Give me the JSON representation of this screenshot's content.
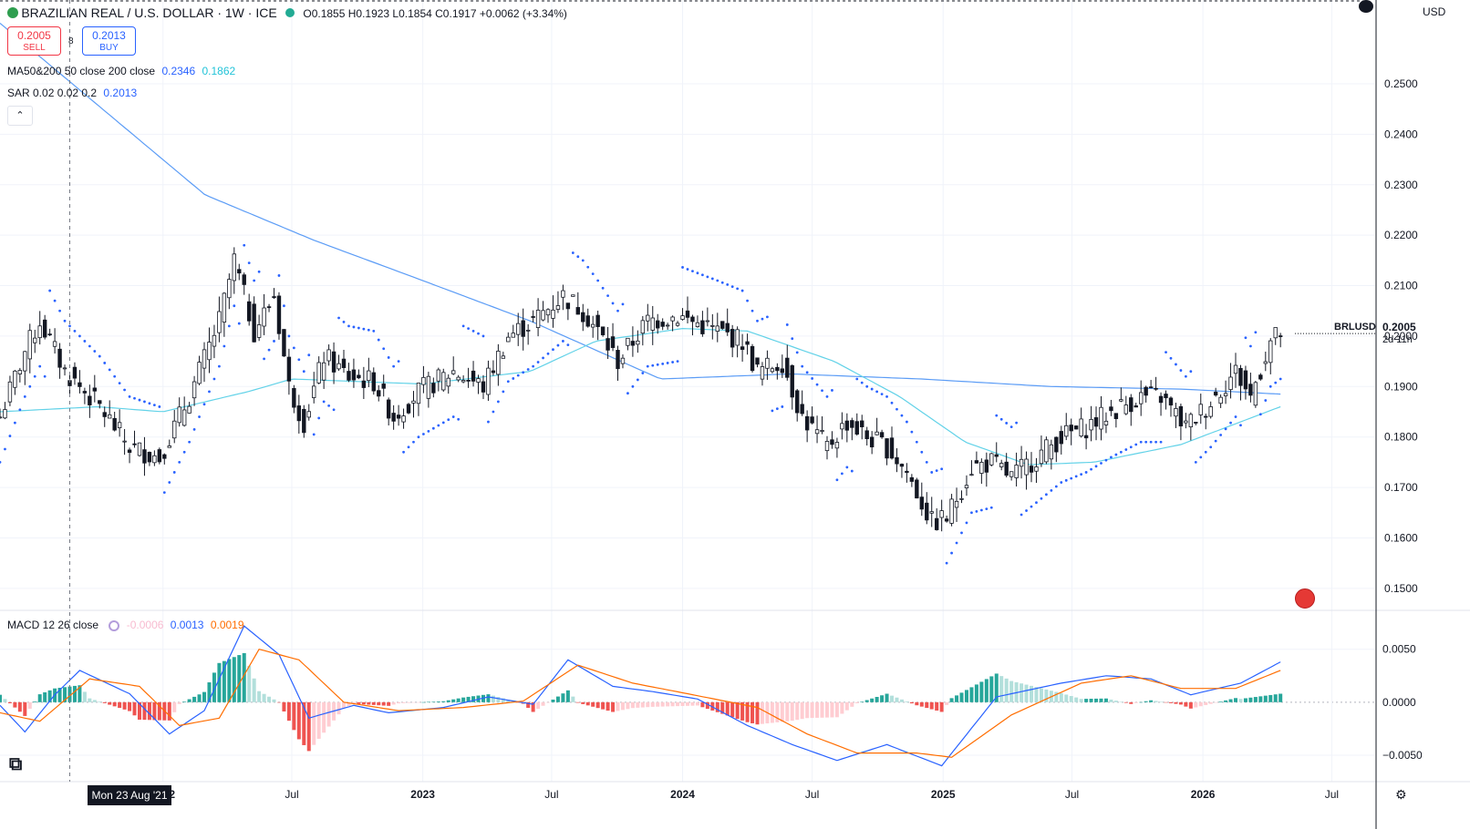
{
  "header": {
    "symbol_title": "BRAZILIAN REAL / U.S. DOLLAR · 1W · ICE",
    "ohlc": "O0.1855  H0.1923  L0.1854  C0.1917  +0.0062 (+3.34%)",
    "sell_price": "0.2005",
    "sell_label": "SELL",
    "spread": "8",
    "buy_price": "0.2013",
    "buy_label": "BUY",
    "currency": "USD"
  },
  "indicators": {
    "ma_label": "MA50&200 50 close 200 close",
    "ma50_value": "0.2346",
    "ma200_value": "0.1862",
    "sar_label": "SAR 0.02 0.02 0.2",
    "sar_value": "0.2013",
    "macd_label": "MACD 12 26 close",
    "macd_hist_value": "-0.0006",
    "macd_value": "0.0013",
    "macd_signal_value": "0.0019"
  },
  "price_tag": {
    "symbol": "BRLUSD",
    "price": "0.2005",
    "countdown": "2d 11h"
  },
  "crosshair_label": "Mon 23 Aug '21",
  "colors": {
    "up": "#131722",
    "macd_line": "#2962ff",
    "signal_line": "#ff6d00",
    "ma_line": "#5b9cf6",
    "ma_line2": "#5ad0e6",
    "sar": "#2962ff",
    "hist_pos": "#26a69a",
    "hist_neg": "#ef5350"
  },
  "chart_data": {
    "type": "candlestick",
    "title": "BRAZILIAN REAL / U.S. DOLLAR · 1W · ICE",
    "price_axis": {
      "ticks": [
        "0.2500",
        "0.2400",
        "0.2300",
        "0.2200",
        "0.2100",
        "0.2000",
        "0.1900",
        "0.1800",
        "0.1700",
        "0.1600",
        "0.1500"
      ],
      "range": [
        0.146,
        0.263
      ]
    },
    "macd_axis": {
      "ticks": [
        "0.0050",
        "0.0000",
        "−0.0050"
      ],
      "range": [
        -0.0075,
        0.0085
      ]
    },
    "time_axis": {
      "ticks": [
        "2022",
        "Jul",
        "2023",
        "Jul",
        "2024",
        "Jul",
        "2025",
        "Jul",
        "2026",
        "Jul"
      ],
      "range": [
        "2021-05-17",
        "2026-08-31"
      ]
    },
    "tick_dates": [
      "2022-01-01",
      "2022-07-01",
      "2023-01-01",
      "2023-07-01",
      "2024-01-01",
      "2024-07-01",
      "2025-01-01",
      "2025-07-01",
      "2026-01-01",
      "2026-07-01"
    ],
    "close_anchors": [
      [
        "2021-05-17",
        0.184
      ],
      [
        "2021-06-21",
        0.197
      ],
      [
        "2021-07-12",
        0.203
      ],
      [
        "2021-08-16",
        0.193
      ],
      [
        "2021-10-04",
        0.186
      ],
      [
        "2021-11-15",
        0.178
      ],
      [
        "2021-12-27",
        0.176
      ],
      [
        "2022-02-07",
        0.188
      ],
      [
        "2022-03-21",
        0.203
      ],
      [
        "2022-04-11",
        0.215
      ],
      [
        "2022-05-09",
        0.201
      ],
      [
        "2022-06-06",
        0.208
      ],
      [
        "2022-06-27",
        0.19
      ],
      [
        "2022-07-18",
        0.183
      ],
      [
        "2022-08-15",
        0.196
      ],
      [
        "2022-09-19",
        0.192
      ],
      [
        "2022-10-24",
        0.191
      ],
      [
        "2022-11-21",
        0.184
      ],
      [
        "2022-12-26",
        0.189
      ],
      [
        "2023-02-13",
        0.193
      ],
      [
        "2023-03-27",
        0.19
      ],
      [
        "2023-05-01",
        0.2
      ],
      [
        "2023-06-05",
        0.203
      ],
      [
        "2023-07-17",
        0.208
      ],
      [
        "2023-08-14",
        0.205
      ],
      [
        "2023-09-04",
        0.201
      ],
      [
        "2023-10-02",
        0.195
      ],
      [
        "2023-11-13",
        0.203
      ],
      [
        "2023-12-25",
        0.204
      ],
      [
        "2024-02-19",
        0.201
      ],
      [
        "2024-03-25",
        0.199
      ],
      [
        "2024-04-15",
        0.193
      ],
      [
        "2024-05-20",
        0.195
      ],
      [
        "2024-06-17",
        0.184
      ],
      [
        "2024-07-22",
        0.178
      ],
      [
        "2024-08-19",
        0.183
      ],
      [
        "2024-09-16",
        0.18
      ],
      [
        "2024-10-14",
        0.178
      ],
      [
        "2024-11-11",
        0.173
      ],
      [
        "2024-12-16",
        0.163
      ],
      [
        "2025-01-06",
        0.164
      ],
      [
        "2025-02-10",
        0.174
      ],
      [
        "2025-03-10",
        0.175
      ],
      [
        "2025-04-07",
        0.172
      ],
      [
        "2025-05-12",
        0.176
      ],
      [
        "2025-06-16",
        0.18
      ],
      [
        "2025-07-21",
        0.182
      ],
      [
        "2025-08-25",
        0.185
      ],
      [
        "2025-10-06",
        0.188
      ],
      [
        "2025-11-03",
        0.188
      ],
      [
        "2025-12-08",
        0.182
      ],
      [
        "2026-01-12",
        0.187
      ],
      [
        "2026-02-16",
        0.193
      ],
      [
        "2026-03-09",
        0.188
      ],
      [
        "2026-04-06",
        0.199
      ],
      [
        "2026-04-20",
        0.2005
      ]
    ],
    "ma200_anchors": [
      [
        "2021-05-17",
        0.262
      ],
      [
        "2022-03-01",
        0.228
      ],
      [
        "2022-08-01",
        0.219
      ],
      [
        "2023-01-01",
        0.211
      ],
      [
        "2023-06-01",
        0.203
      ],
      [
        "2023-12-01",
        0.1915
      ],
      [
        "2024-06-01",
        0.1925
      ],
      [
        "2024-12-01",
        0.1915
      ],
      [
        "2025-06-01",
        0.19
      ],
      [
        "2025-12-01",
        0.1895
      ],
      [
        "2026-04-20",
        0.1885
      ]
    ],
    "ma50_anchors": [
      [
        "2021-05-17",
        0.185
      ],
      [
        "2021-10-01",
        0.186
      ],
      [
        "2022-01-01",
        0.185
      ],
      [
        "2022-05-01",
        0.189
      ],
      [
        "2022-07-01",
        0.1915
      ],
      [
        "2023-01-01",
        0.1905
      ],
      [
        "2023-06-01",
        0.193
      ],
      [
        "2023-09-01",
        0.199
      ],
      [
        "2024-01-01",
        0.2015
      ],
      [
        "2024-04-01",
        0.201
      ],
      [
        "2024-08-01",
        0.195
      ],
      [
        "2024-11-01",
        0.188
      ],
      [
        "2025-02-01",
        0.179
      ],
      [
        "2025-05-01",
        0.1745
      ],
      [
        "2025-08-01",
        0.175
      ],
      [
        "2025-12-01",
        0.1785
      ],
      [
        "2026-04-20",
        0.186
      ]
    ],
    "macd_anchors": [
      [
        "2021-05-17",
        -0.0003
      ],
      [
        "2021-06-21",
        -0.0028
      ],
      [
        "2021-08-02",
        0.0007
      ],
      [
        "2021-09-06",
        0.003
      ],
      [
        "2021-11-15",
        0.0008
      ],
      [
        "2022-01-10",
        -0.003
      ],
      [
        "2022-02-28",
        -0.0008
      ],
      [
        "2022-04-25",
        0.0072
      ],
      [
        "2022-06-13",
        0.0045
      ],
      [
        "2022-07-25",
        -0.0015
      ],
      [
        "2022-09-26",
        -0.0003
      ],
      [
        "2022-11-14",
        -0.001
      ],
      [
        "2023-01-30",
        -0.0005
      ],
      [
        "2023-04-03",
        0.0005
      ],
      [
        "2023-06-05",
        -0.0002
      ],
      [
        "2023-07-24",
        0.004
      ],
      [
        "2023-09-25",
        0.0015
      ],
      [
        "2023-11-20",
        0.001
      ],
      [
        "2024-01-22",
        0.0003
      ],
      [
        "2024-04-01",
        -0.0022
      ],
      [
        "2024-06-03",
        -0.004
      ],
      [
        "2024-08-05",
        -0.0055
      ],
      [
        "2024-10-14",
        -0.004
      ],
      [
        "2024-12-30",
        -0.006
      ],
      [
        "2025-03-17",
        0.0005
      ],
      [
        "2025-06-16",
        0.0018
      ],
      [
        "2025-08-18",
        0.0025
      ],
      [
        "2025-10-20",
        0.0022
      ],
      [
        "2025-12-15",
        0.0007
      ],
      [
        "2026-02-23",
        0.0018
      ],
      [
        "2026-04-20",
        0.0038
      ]
    ],
    "signal_anchors": [
      [
        "2021-05-17",
        -0.001
      ],
      [
        "2021-07-12",
        -0.0018
      ],
      [
        "2021-09-20",
        0.0022
      ],
      [
        "2021-11-29",
        0.0015
      ],
      [
        "2022-01-24",
        -0.0022
      ],
      [
        "2022-03-21",
        -0.0015
      ],
      [
        "2022-05-16",
        0.005
      ],
      [
        "2022-07-11",
        0.004
      ],
      [
        "2022-09-12",
        0.0
      ],
      [
        "2022-11-28",
        -0.0008
      ],
      [
        "2023-02-27",
        -0.0005
      ],
      [
        "2023-05-22",
        0.0001
      ],
      [
        "2023-08-07",
        0.0035
      ],
      [
        "2023-10-23",
        0.0018
      ],
      [
        "2024-01-08",
        0.0008
      ],
      [
        "2024-04-15",
        -0.0005
      ],
      [
        "2024-06-24",
        -0.003
      ],
      [
        "2024-09-02",
        -0.0048
      ],
      [
        "2024-11-25",
        -0.0048
      ],
      [
        "2025-01-13",
        -0.0052
      ],
      [
        "2025-04-07",
        -0.0012
      ],
      [
        "2025-07-14",
        0.0018
      ],
      [
        "2025-09-22",
        0.0025
      ],
      [
        "2025-12-01",
        0.0013
      ],
      [
        "2026-02-16",
        0.0013
      ],
      [
        "2026-04-20",
        0.003
      ]
    ]
  }
}
